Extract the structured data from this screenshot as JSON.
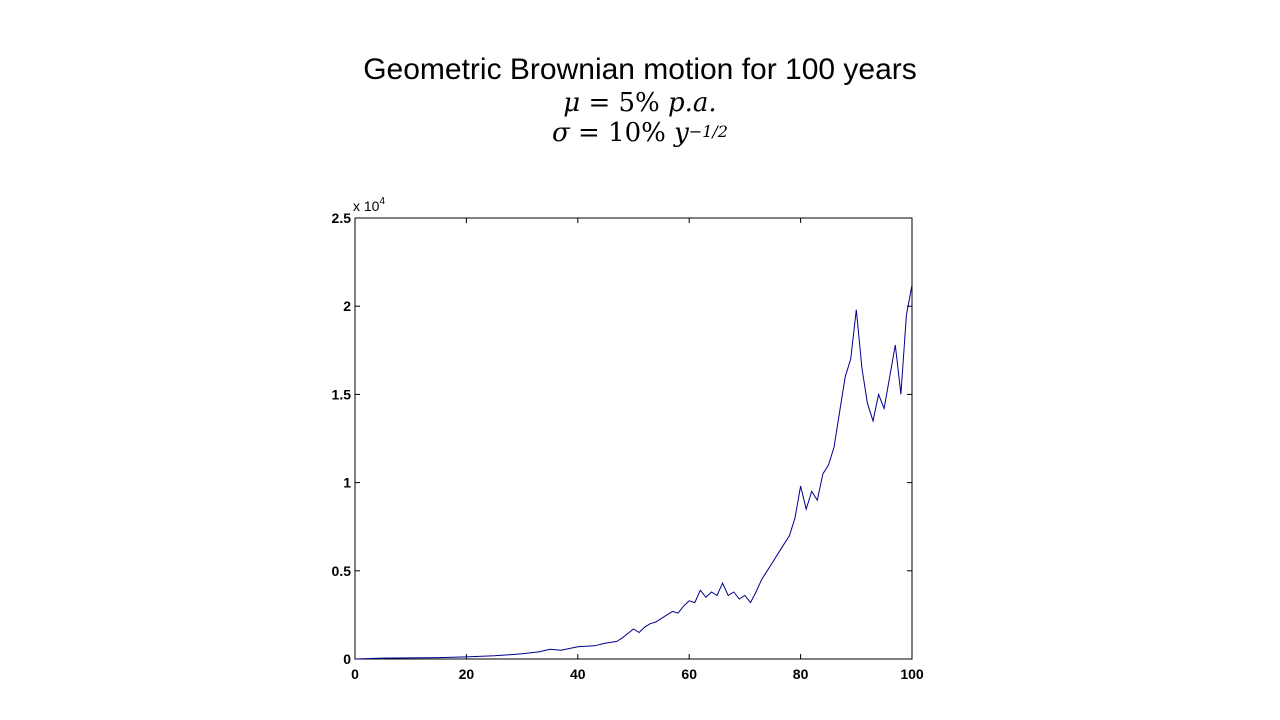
{
  "title": {
    "line1": "Geometric Brownian motion for 100 years",
    "mu_symbol": "μ",
    "mu_equals": " = 5% ",
    "mu_unit": "p.a.",
    "sigma_symbol": "σ",
    "sigma_equals": " = 10% ",
    "sigma_unit_base": "y",
    "sigma_unit_exp": "−1/2"
  },
  "chart_data": {
    "type": "line",
    "title": "Geometric Brownian motion for 100 years",
    "xlabel": "",
    "ylabel": "",
    "xlim": [
      0,
      100
    ],
    "ylim": [
      0,
      25000
    ],
    "x_ticks": [
      0,
      20,
      40,
      60,
      80,
      100
    ],
    "x_tick_labels": [
      "0",
      "20",
      "40",
      "60",
      "80",
      "100"
    ],
    "y_ticks": [
      0,
      5000,
      10000,
      15000,
      20000,
      25000
    ],
    "y_tick_labels": [
      "0",
      "0.5",
      "1",
      "1.5",
      "2",
      "2.5"
    ],
    "y_exponent_label": {
      "base": "x 10",
      "exp": "4"
    },
    "grid": false,
    "line_color": "#00008B",
    "series": [
      {
        "x": [
          0,
          5,
          10,
          15,
          20,
          25,
          28,
          30,
          33,
          35,
          37,
          40,
          43,
          45,
          47,
          48,
          50,
          51,
          52,
          53,
          54,
          55,
          56,
          57,
          58,
          59,
          60,
          61,
          62,
          63,
          64,
          65,
          66,
          67,
          68,
          69,
          70,
          71,
          72,
          73,
          74,
          75,
          76,
          77,
          78,
          79,
          80,
          81,
          82,
          83,
          84,
          85,
          86,
          87,
          88,
          89,
          90,
          91,
          92,
          93,
          94,
          95,
          96,
          97,
          98,
          99,
          100
        ],
        "y": [
          0,
          50,
          60,
          80,
          120,
          180,
          250,
          300,
          400,
          550,
          500,
          700,
          750,
          900,
          1000,
          1200,
          1700,
          1500,
          1800,
          2000,
          2100,
          2300,
          2500,
          2700,
          2600,
          3000,
          3300,
          3200,
          3900,
          3500,
          3800,
          3600,
          4300,
          3600,
          3800,
          3400,
          3600,
          3200,
          3800,
          4500,
          5000,
          5500,
          6000,
          6500,
          7000,
          8000,
          9800,
          8500,
          9500,
          9000,
          10500,
          11000,
          12000,
          14000,
          16000,
          17000,
          19800,
          16500,
          14500,
          13500,
          15000,
          14200,
          16000,
          17800,
          15000,
          19500,
          21200
        ]
      }
    ]
  }
}
